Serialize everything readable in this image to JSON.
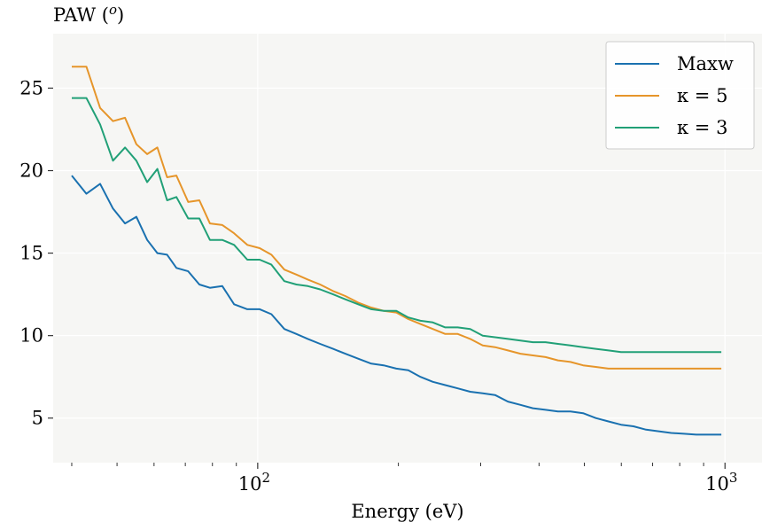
{
  "chart_data": {
    "type": "line",
    "title": "",
    "xlabel": "Energy (eV)",
    "ylabel": "PAW (<tspan baseline-shift='super' font-size='15' font-style='italic'>o</tspan>)",
    "ylabel_text": "PAW (",
    "ylabel_sup": "o",
    "ylabel_close": ")",
    "x_scale": "log",
    "xlim": [
      36.5,
      1200
    ],
    "ylim": [
      2.3,
      28.3
    ],
    "grid": true,
    "legend_position": "top-right",
    "background": "#f6f6f4",
    "x_ticks": [
      {
        "value": 100,
        "base": "10",
        "exp": "2"
      },
      {
        "value": 1000,
        "base": "10",
        "exp": "3"
      }
    ],
    "x_minor_ticks": [
      40,
      50,
      60,
      70,
      80,
      90,
      200,
      300,
      400,
      500,
      600,
      700,
      800,
      900
    ],
    "y_ticks": [
      5,
      10,
      15,
      20,
      25
    ],
    "x": [
      40,
      43,
      46,
      49,
      52,
      55,
      58,
      61,
      64,
      67,
      71,
      75,
      79,
      84,
      89,
      95,
      101,
      107,
      114,
      121,
      128,
      136,
      145,
      154,
      164,
      175,
      186,
      198,
      210,
      223,
      237,
      252,
      268,
      285,
      303,
      322,
      343,
      365,
      388,
      413,
      439,
      467,
      497,
      529,
      563,
      599,
      637,
      678,
      721,
      767,
      816,
      868,
      923,
      982
    ],
    "series": [
      {
        "name": "Maxw",
        "color": "#1a71b0",
        "values": [
          19.7,
          18.6,
          19.2,
          17.7,
          16.8,
          17.2,
          15.8,
          15.0,
          14.9,
          14.1,
          13.9,
          13.1,
          12.9,
          13.0,
          11.9,
          11.6,
          11.6,
          11.3,
          10.4,
          10.1,
          9.8,
          9.5,
          9.2,
          8.9,
          8.6,
          8.3,
          8.2,
          8.0,
          7.9,
          7.5,
          7.2,
          7.0,
          6.8,
          6.6,
          6.5,
          6.4,
          6.0,
          5.8,
          5.6,
          5.5,
          5.4,
          5.4,
          5.3,
          5.0,
          4.8,
          4.6,
          4.5,
          4.3,
          4.2,
          4.1,
          4.05,
          4.0,
          4.0,
          4.0
        ]
      },
      {
        "name": "κ = 5",
        "color": "#e6952a",
        "values": [
          26.3,
          26.3,
          23.8,
          23.0,
          23.2,
          21.6,
          21.0,
          21.4,
          19.6,
          19.7,
          18.1,
          18.2,
          16.8,
          16.7,
          16.2,
          15.5,
          15.3,
          14.9,
          14.0,
          13.7,
          13.4,
          13.1,
          12.7,
          12.4,
          12.0,
          11.7,
          11.5,
          11.4,
          11.0,
          10.7,
          10.4,
          10.1,
          10.1,
          9.8,
          9.4,
          9.3,
          9.1,
          8.9,
          8.8,
          8.7,
          8.5,
          8.4,
          8.2,
          8.1,
          8.0,
          8.0,
          8.0,
          8.0,
          8.0,
          8.0,
          8.0,
          8.0,
          8.0,
          8.0
        ]
      },
      {
        "name": "κ = 3",
        "color": "#21a077",
        "values": [
          24.4,
          24.4,
          22.8,
          20.6,
          21.4,
          20.6,
          19.3,
          20.1,
          18.2,
          18.4,
          17.1,
          17.1,
          15.8,
          15.8,
          15.5,
          14.6,
          14.6,
          14.3,
          13.3,
          13.1,
          13.0,
          12.8,
          12.5,
          12.2,
          11.9,
          11.6,
          11.5,
          11.5,
          11.1,
          10.9,
          10.8,
          10.5,
          10.5,
          10.4,
          10.0,
          9.9,
          9.8,
          9.7,
          9.6,
          9.6,
          9.5,
          9.4,
          9.3,
          9.2,
          9.1,
          9.0,
          9.0,
          9.0,
          9.0,
          9.0,
          9.0,
          9.0,
          9.0,
          9.0
        ]
      }
    ]
  }
}
